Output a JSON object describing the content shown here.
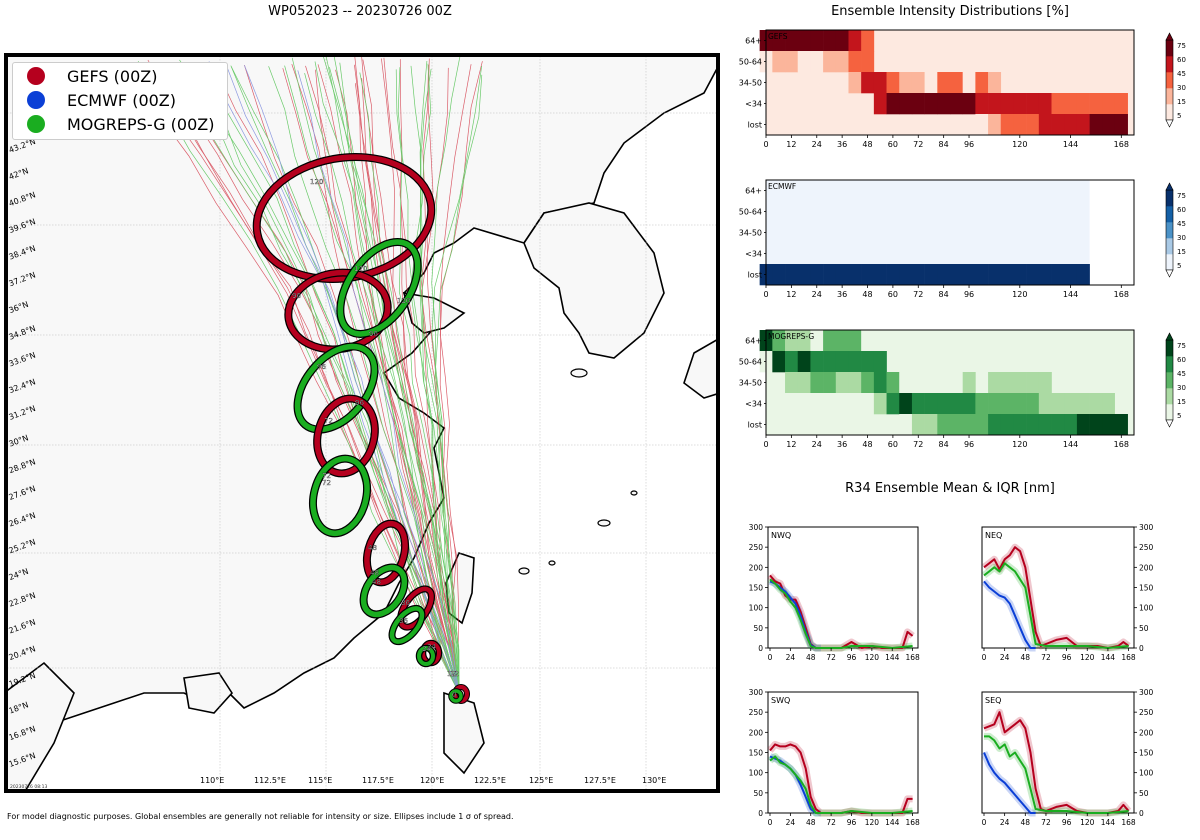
{
  "map": {
    "title": "WP052023 -- 20230726 00Z",
    "footnote": "For model diagnostic purposes. Global ensembles are generally not reliable for intensity or size. Ellipses include 1 σ of spread.",
    "timestamp": "20230726 08:13",
    "legend": [
      {
        "label": "GEFS (00Z)",
        "color": "#b5001e"
      },
      {
        "label": "ECMWF (00Z)",
        "color": "#0b3fd6"
      },
      {
        "label": "MOGREPS-G (00Z)",
        "color": "#1aad20"
      }
    ],
    "lat_labels": [
      "43.2°N",
      "42°N",
      "40.8°N",
      "39.6°N",
      "38.4°N",
      "37.2°N",
      "36°N",
      "34.8°N",
      "33.6°N",
      "32.4°N",
      "31.2°N",
      "30°N",
      "28.8°N",
      "27.6°N",
      "26.4°N",
      "25.2°N",
      "24°N",
      "22.8°N",
      "21.6°N",
      "20.4°N",
      "19.2°N",
      "18°N",
      "16.8°N",
      "15.6°N"
    ],
    "lon_labels": [
      "110°E",
      "112.5°E",
      "115°E",
      "117.5°E",
      "120°E",
      "122.5°E",
      "125°E",
      "127.5°E",
      "130°E"
    ],
    "ellipse_hour_labels": [
      "120",
      "96",
      "120",
      "120",
      "96",
      "96",
      "72",
      "96",
      "72",
      "72",
      "48",
      "48",
      "48",
      "36",
      "36",
      "24",
      "24",
      "12",
      "12",
      "0"
    ]
  },
  "intensity": {
    "title": "Ensemble Intensity Distributions [%]",
    "y_categories": [
      "64+",
      "50-64",
      "34-50",
      "<34",
      "lost"
    ],
    "x_ticks": [
      "0",
      "12",
      "24",
      "36",
      "48",
      "60",
      "72",
      "84",
      "96",
      "120",
      "144",
      "168"
    ],
    "colorbar_ticks": [
      "75",
      "60",
      "45",
      "30",
      "15",
      "5"
    ],
    "panels": [
      {
        "name": "GEFS",
        "colormap": "reds",
        "colors": [
          "#fde9e0",
          "#fbb59b",
          "#f5623f",
          "#c3151c",
          "#6b0010"
        ]
      },
      {
        "name": "ECMWF",
        "colormap": "blues",
        "colors": [
          "#eef4fc",
          "#a9c9e5",
          "#4b92c7",
          "#1460a6",
          "#08306b"
        ]
      },
      {
        "name": "MOGREPS-G",
        "colormap": "greens",
        "colors": [
          "#eaf6e6",
          "#abdaa3",
          "#5cb466",
          "#218944",
          "#00441b"
        ]
      }
    ]
  },
  "chart_data": [
    {
      "type": "heatmap",
      "title": "GEFS",
      "x_hours": [
        0,
        6,
        12,
        18,
        24,
        30,
        36,
        42,
        48,
        54,
        60,
        66,
        72,
        78,
        84,
        90,
        96,
        102,
        108,
        114,
        120,
        126,
        132,
        138,
        144,
        150,
        156,
        162,
        168
      ],
      "y_categories": [
        "64+",
        "50-64",
        "34-50",
        "<34",
        "lost"
      ],
      "values": [
        [
          75,
          75,
          75,
          75,
          75,
          75,
          75,
          45,
          30,
          0,
          0,
          0,
          0,
          0,
          0,
          0,
          0,
          0,
          0,
          0,
          0,
          0,
          0,
          0,
          0,
          0,
          0,
          0,
          0
        ],
        [
          5,
          15,
          15,
          5,
          5,
          15,
          15,
          30,
          30,
          0,
          0,
          0,
          0,
          0,
          0,
          0,
          0,
          0,
          0,
          0,
          0,
          0,
          0,
          0,
          0,
          0,
          0,
          0,
          0
        ],
        [
          0,
          0,
          0,
          0,
          0,
          0,
          0,
          15,
          45,
          60,
          30,
          15,
          15,
          5,
          30,
          30,
          5,
          30,
          15,
          0,
          0,
          0,
          0,
          0,
          0,
          0,
          0,
          0,
          0
        ],
        [
          0,
          0,
          0,
          0,
          0,
          0,
          0,
          0,
          0,
          45,
          75,
          75,
          75,
          75,
          75,
          75,
          75,
          60,
          60,
          60,
          60,
          60,
          45,
          30,
          30,
          30,
          30,
          30,
          30
        ],
        [
          0,
          0,
          0,
          0,
          0,
          0,
          0,
          0,
          0,
          0,
          0,
          0,
          0,
          0,
          0,
          0,
          0,
          5,
          15,
          30,
          30,
          30,
          45,
          60,
          60,
          60,
          75,
          75,
          75
        ]
      ]
    },
    {
      "type": "heatmap",
      "title": "ECMWF",
      "x_hours": [
        0,
        6,
        12,
        18,
        24,
        30,
        36,
        42,
        48,
        54,
        60,
        66,
        72,
        78,
        84,
        90,
        96,
        102,
        108,
        114,
        120,
        126,
        132,
        138,
        144,
        150
      ],
      "y_categories": [
        "64+",
        "50-64",
        "34-50",
        "<34",
        "lost"
      ],
      "values": [
        [
          0,
          0,
          0,
          0,
          0,
          0,
          0,
          0,
          0,
          0,
          0,
          0,
          0,
          0,
          0,
          0,
          0,
          0,
          0,
          0,
          0,
          0,
          0,
          0,
          0,
          0
        ],
        [
          0,
          0,
          0,
          0,
          0,
          0,
          0,
          0,
          0,
          0,
          0,
          0,
          0,
          0,
          0,
          0,
          0,
          0,
          0,
          0,
          0,
          0,
          0,
          0,
          0,
          0
        ],
        [
          0,
          0,
          0,
          0,
          0,
          0,
          0,
          0,
          0,
          0,
          0,
          0,
          0,
          0,
          0,
          0,
          0,
          0,
          0,
          0,
          0,
          0,
          0,
          0,
          0,
          0
        ],
        [
          0,
          0,
          0,
          0,
          0,
          0,
          0,
          0,
          0,
          0,
          0,
          0,
          0,
          0,
          0,
          0,
          0,
          0,
          0,
          0,
          0,
          0,
          0,
          0,
          0,
          0
        ],
        [
          100,
          100,
          100,
          100,
          100,
          100,
          100,
          100,
          100,
          100,
          100,
          100,
          100,
          100,
          100,
          100,
          100,
          100,
          100,
          100,
          100,
          100,
          100,
          100,
          100,
          100
        ]
      ]
    },
    {
      "type": "heatmap",
      "title": "MOGREPS-G",
      "x_hours": [
        0,
        6,
        12,
        18,
        24,
        30,
        36,
        42,
        48,
        54,
        60,
        66,
        72,
        78,
        84,
        90,
        96,
        102,
        108,
        114,
        120,
        126,
        132,
        138,
        144,
        150,
        156,
        162,
        168
      ],
      "y_categories": [
        "64+",
        "50-64",
        "34-50",
        "<34",
        "lost"
      ],
      "values": [
        [
          75,
          30,
          15,
          15,
          5,
          30,
          30,
          30,
          5,
          0,
          0,
          0,
          0,
          0,
          0,
          0,
          0,
          0,
          0,
          0,
          0,
          0,
          0,
          0,
          0,
          0,
          0,
          0,
          0
        ],
        [
          5,
          75,
          60,
          75,
          60,
          60,
          60,
          45,
          45,
          45,
          0,
          0,
          0,
          0,
          0,
          0,
          0,
          0,
          0,
          0,
          0,
          0,
          0,
          0,
          0,
          0,
          0,
          0,
          0
        ],
        [
          0,
          0,
          15,
          15,
          30,
          30,
          15,
          15,
          30,
          45,
          30,
          5,
          0,
          0,
          0,
          0,
          15,
          0,
          15,
          15,
          15,
          15,
          15,
          0,
          0,
          0,
          0,
          0,
          0
        ],
        [
          0,
          0,
          5,
          5,
          5,
          5,
          5,
          5,
          5,
          15,
          60,
          75,
          60,
          60,
          45,
          45,
          45,
          30,
          30,
          30,
          30,
          30,
          15,
          15,
          15,
          15,
          15,
          15,
          5
        ],
        [
          0,
          0,
          0,
          0,
          0,
          0,
          0,
          0,
          0,
          0,
          0,
          5,
          15,
          15,
          30,
          30,
          30,
          30,
          45,
          45,
          45,
          45,
          45,
          60,
          60,
          75,
          75,
          75,
          75
        ]
      ]
    },
    {
      "type": "line",
      "title": "NWQ",
      "ylim": [
        0,
        300
      ],
      "x_ticks": [
        0,
        24,
        48,
        72,
        96,
        120,
        144,
        168
      ],
      "series": [
        {
          "name": "GEFS",
          "color": "#b5001e",
          "x": [
            0,
            6,
            12,
            18,
            24,
            30,
            36,
            42,
            48,
            54,
            60,
            72,
            84,
            96,
            108,
            120,
            132,
            144,
            156,
            162,
            168
          ],
          "y": [
            180,
            165,
            160,
            130,
            120,
            120,
            90,
            50,
            10,
            0,
            0,
            0,
            0,
            15,
            0,
            5,
            0,
            0,
            0,
            40,
            30
          ]
        },
        {
          "name": "ECMWF",
          "color": "#0b3fd6",
          "x": [
            0,
            6,
            12,
            18,
            24,
            30,
            36,
            42,
            48,
            54,
            60
          ],
          "y": [
            165,
            160,
            150,
            140,
            125,
            110,
            80,
            40,
            8,
            0,
            0
          ]
        },
        {
          "name": "MOGREPS-G",
          "color": "#1aad20",
          "x": [
            0,
            6,
            12,
            18,
            24,
            30,
            36,
            42,
            48,
            54,
            60,
            72,
            84,
            96,
            120,
            144,
            168
          ],
          "y": [
            170,
            160,
            145,
            135,
            115,
            100,
            70,
            35,
            5,
            0,
            0,
            0,
            0,
            5,
            5,
            0,
            5
          ]
        }
      ]
    },
    {
      "type": "line",
      "title": "NEQ",
      "ylim": [
        0,
        300
      ],
      "x_ticks": [
        0,
        24,
        48,
        72,
        96,
        120,
        144,
        168
      ],
      "series": [
        {
          "name": "GEFS",
          "color": "#b5001e",
          "x": [
            0,
            6,
            12,
            18,
            24,
            30,
            36,
            42,
            48,
            54,
            60,
            66,
            72,
            84,
            96,
            108,
            120,
            132,
            144,
            156,
            162,
            168
          ],
          "y": [
            200,
            210,
            220,
            195,
            220,
            230,
            250,
            240,
            200,
            120,
            40,
            5,
            10,
            20,
            25,
            5,
            5,
            5,
            0,
            5,
            15,
            5
          ]
        },
        {
          "name": "ECMWF",
          "color": "#0b3fd6",
          "x": [
            0,
            6,
            12,
            18,
            24,
            30,
            36,
            42,
            48,
            54,
            60
          ],
          "y": [
            165,
            150,
            140,
            130,
            125,
            110,
            80,
            50,
            20,
            0,
            0
          ]
        },
        {
          "name": "MOGREPS-G",
          "color": "#1aad20",
          "x": [
            0,
            6,
            12,
            18,
            24,
            30,
            36,
            42,
            48,
            54,
            60,
            72,
            84,
            96,
            120,
            144,
            168
          ],
          "y": [
            180,
            190,
            200,
            190,
            210,
            200,
            190,
            170,
            150,
            80,
            10,
            5,
            5,
            5,
            5,
            0,
            5
          ]
        }
      ]
    },
    {
      "type": "line",
      "title": "SWQ",
      "ylim": [
        0,
        300
      ],
      "x_ticks": [
        0,
        24,
        48,
        72,
        96,
        120,
        144,
        168
      ],
      "series": [
        {
          "name": "GEFS",
          "color": "#b5001e",
          "x": [
            0,
            6,
            12,
            18,
            24,
            30,
            36,
            42,
            48,
            54,
            60,
            72,
            84,
            96,
            108,
            120,
            132,
            144,
            156,
            162,
            168
          ],
          "y": [
            155,
            170,
            165,
            165,
            170,
            165,
            150,
            110,
            40,
            10,
            0,
            0,
            0,
            5,
            0,
            0,
            0,
            0,
            0,
            35,
            35
          ]
        },
        {
          "name": "ECMWF",
          "color": "#0b3fd6",
          "x": [
            0,
            6,
            12,
            18,
            24,
            30,
            36,
            42,
            48,
            54,
            60
          ],
          "y": [
            140,
            135,
            130,
            120,
            110,
            95,
            70,
            40,
            10,
            0,
            0
          ]
        },
        {
          "name": "MOGREPS-G",
          "color": "#1aad20",
          "x": [
            0,
            6,
            12,
            18,
            24,
            30,
            36,
            42,
            48,
            54,
            60,
            72,
            84,
            96,
            120,
            144,
            168
          ],
          "y": [
            130,
            140,
            125,
            120,
            110,
            95,
            80,
            60,
            20,
            0,
            0,
            0,
            0,
            5,
            0,
            0,
            5
          ]
        }
      ]
    },
    {
      "type": "line",
      "title": "SEQ",
      "ylim": [
        0,
        300
      ],
      "x_ticks": [
        0,
        24,
        48,
        72,
        96,
        120,
        144,
        168
      ],
      "series": [
        {
          "name": "GEFS",
          "color": "#b5001e",
          "x": [
            0,
            6,
            12,
            18,
            24,
            30,
            36,
            42,
            48,
            54,
            60,
            66,
            72,
            84,
            96,
            108,
            120,
            132,
            144,
            156,
            162,
            168
          ],
          "y": [
            210,
            215,
            220,
            250,
            200,
            210,
            220,
            230,
            210,
            150,
            60,
            10,
            5,
            15,
            20,
            5,
            0,
            0,
            0,
            5,
            20,
            5
          ]
        },
        {
          "name": "ECMWF",
          "color": "#0b3fd6",
          "x": [
            0,
            6,
            12,
            18,
            24,
            30,
            36,
            42,
            48,
            54,
            60
          ],
          "y": [
            150,
            120,
            100,
            85,
            75,
            60,
            45,
            30,
            15,
            0,
            0
          ]
        },
        {
          "name": "MOGREPS-G",
          "color": "#1aad20",
          "x": [
            0,
            6,
            12,
            18,
            24,
            30,
            36,
            42,
            48,
            54,
            60,
            72,
            84,
            96,
            120,
            144,
            168
          ],
          "y": [
            190,
            190,
            180,
            160,
            170,
            140,
            150,
            130,
            110,
            60,
            10,
            5,
            5,
            5,
            0,
            0,
            5
          ]
        }
      ]
    }
  ],
  "r34": {
    "title": "R34 Ensemble Mean & IQR [nm]",
    "y_ticks": [
      "0",
      "50",
      "100",
      "150",
      "200",
      "250",
      "300"
    ],
    "x_ticks": [
      "0",
      "24",
      "48",
      "72",
      "96",
      "120",
      "144",
      "168"
    ]
  }
}
